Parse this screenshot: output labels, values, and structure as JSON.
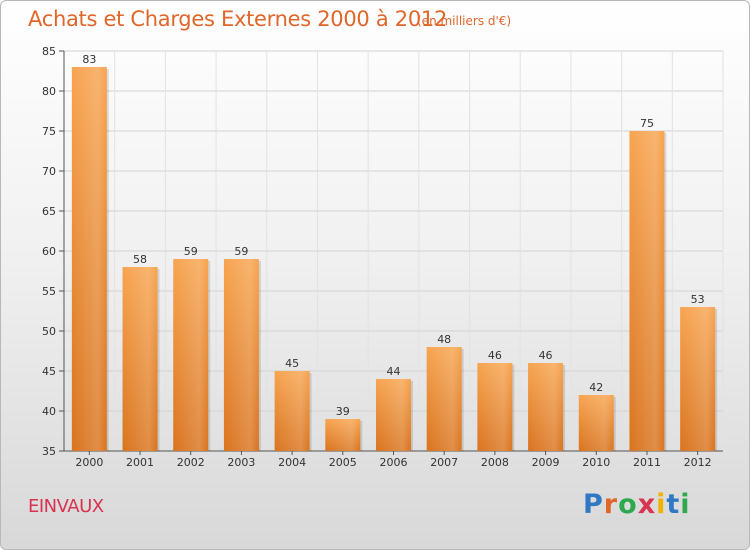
{
  "page": {
    "title": "Achats et Charges Externes 2000 à 2012",
    "unit": "(en milliers d'€)",
    "commune": "EINVAUX",
    "logo": "Proxiti",
    "logo_colors": [
      "#2f78c4",
      "#e0662a",
      "#2fa84f",
      "#d8334f",
      "#f0b400",
      "#2f78c4",
      "#2fa84f"
    ]
  },
  "chart_data": {
    "type": "bar",
    "categories": [
      "2000",
      "2001",
      "2002",
      "2003",
      "2004",
      "2005",
      "2006",
      "2007",
      "2008",
      "2009",
      "2010",
      "2011",
      "2012"
    ],
    "values": [
      83,
      58,
      59,
      59,
      45,
      39,
      44,
      48,
      46,
      46,
      42,
      75,
      53
    ],
    "ylim": [
      35,
      85
    ],
    "yticks": [
      35,
      40,
      45,
      50,
      55,
      60,
      65,
      70,
      75,
      80,
      85
    ],
    "grid": true,
    "bar_color": "#f0923a",
    "legend": "none"
  }
}
